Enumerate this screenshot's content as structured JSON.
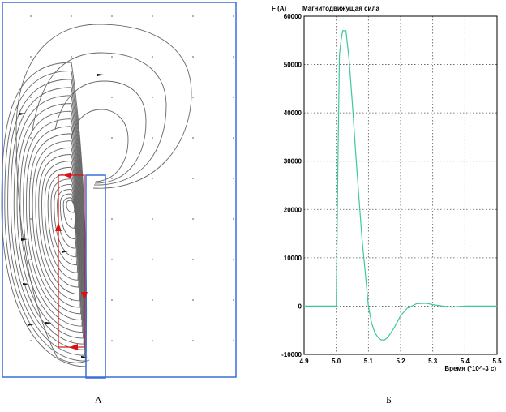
{
  "panel_a": {
    "caption": "А"
  },
  "panel_b": {
    "caption": "Б",
    "colors": {
      "curve": "#3cc8a0",
      "frame": "#000000",
      "grid": "#555555"
    },
    "chart_data": {
      "type": "line",
      "y_unit_label": "F (A)",
      "title": "Магнитодвижущая сила",
      "xlabel": "Время (*10^-3 с)",
      "xlim": [
        4.9,
        5.5
      ],
      "ylim": [
        -10000,
        60000
      ],
      "x_ticks": [
        "4.9",
        "5.0",
        "5.1",
        "5.2",
        "5.3",
        "5.4",
        "5.5"
      ],
      "y_ticks": [
        "-10000",
        "0",
        "10000",
        "20000",
        "30000",
        "40000",
        "50000",
        "60000"
      ],
      "grid": true,
      "series": [
        {
          "x": [
            4.9,
            4.99,
            4.995,
            5.0,
            5.005,
            5.01,
            5.015,
            5.02,
            5.03,
            5.04,
            5.05,
            5.06,
            5.07,
            5.08,
            5.09,
            5.1,
            5.11,
            5.12,
            5.13,
            5.14,
            5.15,
            5.16,
            5.18,
            5.2,
            5.22,
            5.25,
            5.28,
            5.3,
            5.33,
            5.36,
            5.4,
            5.45,
            5.5
          ],
          "y": [
            0,
            0,
            0,
            0,
            28000,
            52000,
            55000,
            57000,
            57000,
            51000,
            42000,
            32000,
            23000,
            14000,
            7000,
            0,
            -3500,
            -5500,
            -6500,
            -7000,
            -7000,
            -6500,
            -4500,
            -2000,
            -500,
            500,
            600,
            300,
            0,
            -200,
            0,
            0,
            0
          ]
        }
      ]
    }
  }
}
